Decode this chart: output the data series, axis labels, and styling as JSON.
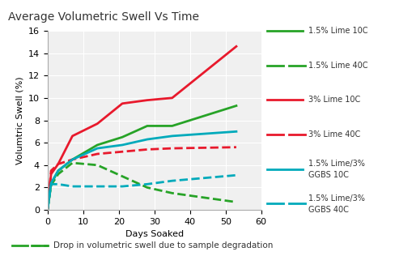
{
  "title": "Average Volumetric Swell Vs Time",
  "xlabel": "Days Soaked",
  "ylabel": "Volumtric Swell (%)",
  "xlim": [
    0,
    60
  ],
  "ylim": [
    0,
    16
  ],
  "xticks": [
    0,
    10,
    20,
    30,
    40,
    50,
    60
  ],
  "yticks": [
    0,
    2,
    4,
    6,
    8,
    10,
    12,
    14,
    16
  ],
  "series": [
    {
      "label": "1.5% Lime 10C",
      "color": "#27a327",
      "linestyle": "solid",
      "linewidth": 2.0,
      "x": [
        0,
        1,
        3,
        7,
        14,
        21,
        28,
        35,
        53
      ],
      "y": [
        0,
        2.3,
        3.5,
        4.5,
        5.8,
        6.5,
        7.5,
        7.5,
        9.3
      ]
    },
    {
      "label": "1.5% Lime 40C",
      "color": "#27a327",
      "linestyle": "dashed",
      "linewidth": 2.0,
      "x": [
        0,
        1,
        3,
        7,
        14,
        21,
        28,
        35,
        53
      ],
      "y": [
        0,
        2.2,
        3.2,
        4.2,
        4.0,
        3.0,
        2.0,
        1.5,
        0.7
      ]
    },
    {
      "label": "3% Lime 10C",
      "color": "#e8192c",
      "linestyle": "solid",
      "linewidth": 2.0,
      "x": [
        0,
        1,
        3,
        7,
        14,
        21,
        28,
        35,
        53
      ],
      "y": [
        0,
        3.2,
        4.1,
        6.6,
        7.7,
        9.5,
        9.8,
        10.0,
        14.6
      ]
    },
    {
      "label": "3% Lime 40C",
      "color": "#e8192c",
      "linestyle": "dashed",
      "linewidth": 2.0,
      "x": [
        0,
        1,
        3,
        7,
        14,
        21,
        28,
        35,
        53
      ],
      "y": [
        0,
        3.5,
        4.1,
        4.5,
        5.0,
        5.2,
        5.4,
        5.5,
        5.6
      ]
    },
    {
      "label": "1.5% Lime/3%\nGGBS 10C",
      "color": "#00aabb",
      "linestyle": "solid",
      "linewidth": 2.0,
      "x": [
        0,
        1,
        3,
        7,
        14,
        21,
        28,
        35,
        53
      ],
      "y": [
        0,
        2.4,
        3.5,
        4.5,
        5.5,
        5.8,
        6.3,
        6.6,
        7.0
      ]
    },
    {
      "label": "1.5% Lime/3%\nGGBS 40C",
      "color": "#00aabb",
      "linestyle": "dashed",
      "linewidth": 2.0,
      "x": [
        0,
        1,
        3,
        7,
        14,
        21,
        28,
        35,
        53
      ],
      "y": [
        0,
        2.3,
        2.3,
        2.1,
        2.1,
        2.1,
        2.3,
        2.6,
        3.1
      ]
    }
  ],
  "legend_entries": [
    {
      "label": "1.5% Lime 10C",
      "color": "#27a327",
      "linestyle": "solid"
    },
    {
      "label": "1.5% Lime 40C",
      "color": "#27a327",
      "linestyle": "dashed"
    },
    {
      "label": "3% Lime 10C",
      "color": "#e8192c",
      "linestyle": "solid"
    },
    {
      "label": "3% Lime 40C",
      "color": "#e8192c",
      "linestyle": "dashed"
    },
    {
      "label": "1.5% Lime/3%\nGGBS 10C",
      "color": "#00aabb",
      "linestyle": "solid"
    },
    {
      "label": "1.5% Lime/3%\nGGBS 40C",
      "color": "#00aabb",
      "linestyle": "dashed"
    }
  ],
  "footer_text": "Drop in volumetric swell due to sample degradation",
  "footer_color": "#27a327",
  "background_color": "#ffffff",
  "plot_bg_color": "#f0f0f0",
  "title_fontsize": 10,
  "axis_fontsize": 8,
  "tick_fontsize": 8,
  "legend_fontsize": 7
}
